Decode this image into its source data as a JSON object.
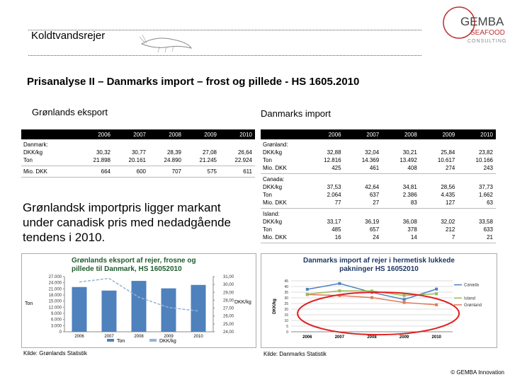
{
  "header": {
    "title": "Koldtvandsrejer",
    "logo": [
      "GEMBA",
      "SEAFOOD",
      "CONSULTING"
    ]
  },
  "main_title": "Prisanalyse II – Danmarks import – frost og pillede - HS 1605.2010",
  "left": {
    "heading": "Grønlands eksport",
    "table": {
      "columns": [
        "2006",
        "2007",
        "2008",
        "2009",
        "2010"
      ],
      "rows": [
        {
          "label": [
            "Danmark:",
            "DKK/kg",
            "Ton"
          ],
          "cells": [
            [
              "30,32",
              "21.898"
            ],
            [
              "30,77",
              "20.161"
            ],
            [
              "28,39",
              "24.890"
            ],
            [
              "27,08",
              "21.245"
            ],
            [
              "26,64",
              "22.924"
            ]
          ]
        },
        {
          "label": [
            "Mio. DKK"
          ],
          "cells": [
            [
              "664"
            ],
            [
              "600"
            ],
            [
              "707"
            ],
            [
              "575"
            ],
            [
              "611"
            ]
          ]
        }
      ]
    },
    "statement": "Grønlandsk importpris ligger markant under canadisk pris med nedadgående tendens i 2010.",
    "source": "Kilde: Grønlands Statistik"
  },
  "right": {
    "heading": "Danmarks import",
    "table": {
      "columns": [
        "2006",
        "2007",
        "2008",
        "2009",
        "2010"
      ],
      "rows": [
        {
          "label": [
            "Grønland:",
            "DKK/kg",
            "Ton",
            "Mio. DKK"
          ],
          "cells": [
            [
              "32,88",
              "12.816",
              "425"
            ],
            [
              "32,04",
              "14.369",
              "461"
            ],
            [
              "30,21",
              "13.492",
              "408"
            ],
            [
              "25,84",
              "10.617",
              "274"
            ],
            [
              "23,82",
              "10.166",
              "243"
            ]
          ]
        },
        {
          "label": [
            "Canada:",
            "DKK/kg",
            "Ton",
            "Mio. DKK"
          ],
          "cells": [
            [
              "37,53",
              "2.064",
              "77"
            ],
            [
              "42,64",
              "637",
              "27"
            ],
            [
              "34,81",
              "2.386",
              "83"
            ],
            [
              "28,56",
              "4.435",
              "127"
            ],
            [
              "37,73",
              "1.662",
              "63"
            ]
          ]
        },
        {
          "label": [
            "Island:",
            "DKK/kg",
            "Ton",
            "Mio. DKK"
          ],
          "cells": [
            [
              "33,17",
              "485",
              "16"
            ],
            [
              "36,19",
              "657",
              "24"
            ],
            [
              "36,08",
              "378",
              "14"
            ],
            [
              "32,02",
              "212",
              "7"
            ],
            [
              "33,58",
              "633",
              "21"
            ]
          ]
        }
      ]
    },
    "source": "Kilde: Danmarks Statistik"
  },
  "charts": [
    {
      "type": "bar_line",
      "title": [
        "Grønlands eksport af rejer, frosne og",
        "pillede til Danmark, HS 16052010"
      ],
      "categories": [
        "2006",
        "2007",
        "2008",
        "2009",
        "2010"
      ],
      "y_label": "Ton",
      "y2_label": "DKK/kg",
      "series": [
        {
          "name": "Ton",
          "color": "#4f81bd",
          "values": [
            21898,
            20161,
            24890,
            21245,
            22924
          ],
          "axis": "y"
        },
        {
          "name": "DKK/kg",
          "color": "#95b3d7",
          "values": [
            30.32,
            30.77,
            28.39,
            27.08,
            26.64
          ],
          "axis": "y2"
        }
      ],
      "ylim": [
        0,
        27000
      ],
      "yticks": [
        0,
        {
          "value": 3000,
          "label": "3.000"
        },
        {
          "value": 6000,
          "label": "6.000"
        },
        {
          "value": 9000,
          "label": "9.000"
        },
        {
          "value": 12000,
          "label": "12.000"
        },
        {
          "value": 15000,
          "label": "15.000"
        },
        {
          "value": 18000,
          "label": "18.000"
        },
        {
          "value": 21000,
          "label": "21.000"
        },
        {
          "value": 24000,
          "label": "24.000"
        },
        {
          "value": 27000,
          "label": "27.000"
        }
      ],
      "y2lim": [
        24,
        31
      ],
      "y2ticks": [
        {
          "value": 24,
          "label": "24,00"
        },
        {
          "value": 25,
          "label": "25,00"
        },
        {
          "value": 26,
          "label": "26,00"
        },
        {
          "value": 27,
          "label": "27,00"
        },
        {
          "value": 28,
          "label": "28,00"
        },
        {
          "value": 29,
          "label": "29,00"
        },
        {
          "value": 30,
          "label": "30,00"
        },
        {
          "value": 31,
          "label": "31,00"
        }
      ]
    },
    {
      "type": "line",
      "title": [
        "Danmarks import af rejer i hermetisk lukkede",
        "pakninger HS 16052010"
      ],
      "categories": [
        "2006",
        "2007",
        "2008",
        "2009",
        "2010"
      ],
      "y_label": "DKK/kg",
      "series": [
        {
          "name": "Canada",
          "color": "#4f81bd",
          "values": [
            37.53,
            42.64,
            34.81,
            28.56,
            37.73
          ]
        },
        {
          "name": "Grønland",
          "color": "#e07b5a",
          "values": [
            32.88,
            32.04,
            30.21,
            25.84,
            23.82
          ]
        },
        {
          "name": "Island",
          "color": "#9bbb59",
          "values": [
            33.17,
            36.19,
            36.08,
            32.02,
            33.58
          ]
        }
      ],
      "ylim": [
        0,
        45
      ],
      "yticks": [
        0,
        5,
        10,
        15,
        20,
        25,
        30,
        35,
        40,
        45
      ],
      "grid": true
    }
  ],
  "footer": "© GEMBA Innovation"
}
